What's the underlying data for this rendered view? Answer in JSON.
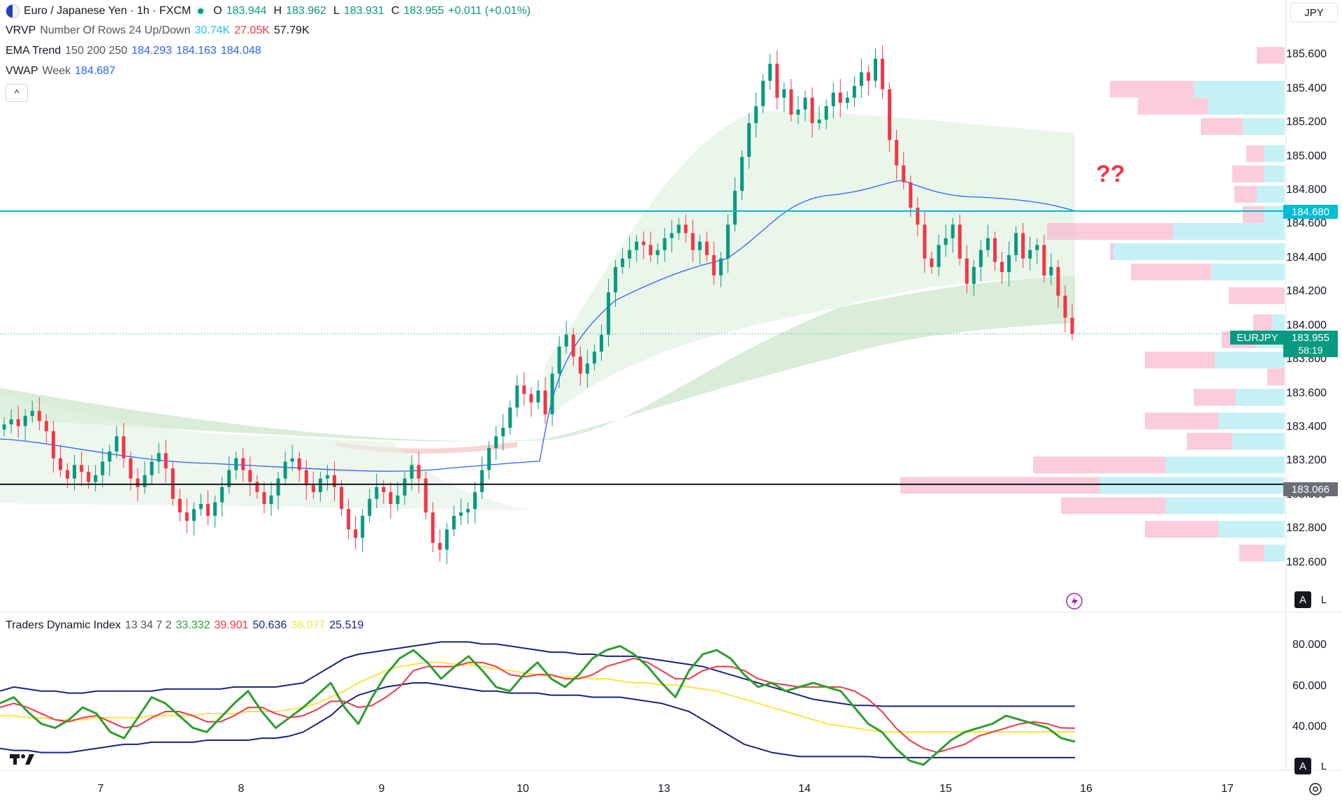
{
  "header": {
    "title": "Euro / Japanese Yen · 1h · FXCM",
    "ohlc": [
      {
        "k": "O",
        "v": "183.944"
      },
      {
        "k": "H",
        "v": "183.962"
      },
      {
        "k": "L",
        "v": "183.931"
      },
      {
        "k": "C",
        "v": "183.955"
      }
    ],
    "change": "+0.011 (+0.01%)"
  },
  "currency": "JPY",
  "indicators": {
    "vrvp": {
      "name": "VRVP",
      "params": "Number Of Rows 24 Up/Down",
      "v1": "30.74K",
      "v2": "27.05K",
      "v3": "57.79K"
    },
    "ema": {
      "name": "EMA Trend",
      "params": "150 200 250",
      "v1": "184.293",
      "v2": "184.163",
      "v3": "184.048"
    },
    "vwap": {
      "name": "VWAP",
      "params": "Week",
      "v1": "184.687"
    },
    "tdi": {
      "name": "Traders Dynamic Index",
      "params": "13 34 7 2",
      "v1": "33.332",
      "v2": "39.901",
      "v3": "50.636",
      "v4": "38.077",
      "v5": "25.519"
    }
  },
  "annotation": "??",
  "price_axis": {
    "ticks": [
      "185.600",
      "185.400",
      "185.200",
      "185.000",
      "184.800",
      "184.600",
      "184.400",
      "184.200",
      "184.000",
      "183.800",
      "183.600",
      "183.400",
      "183.200",
      "183.000",
      "182.800",
      "182.600"
    ],
    "tag_resistance": "184.680",
    "tag_support": "183.066",
    "tag_symbol": "EURJPY",
    "tag_last": "183.955",
    "tag_countdown": "58:19"
  },
  "tdi_axis": {
    "ticks": [
      "80.000",
      "60.000",
      "40.000"
    ]
  },
  "time_axis": {
    "ticks": [
      "7",
      "8",
      "9",
      "10",
      "13",
      "14",
      "15",
      "16",
      "17"
    ]
  },
  "buttons": {
    "auto": "A",
    "log": "L",
    "collapse": "^"
  },
  "colors": {
    "up": "#089981",
    "down": "#f23645",
    "resistance": "#00bcd4",
    "support": "#131722",
    "vwap": "#2962ff",
    "annotation": "#f23645"
  },
  "chart_data": {
    "type": "candlestick",
    "ylim": [
      182.5,
      185.7
    ],
    "levels": [
      {
        "value": 184.68,
        "label": "184.680"
      },
      {
        "value": 183.066,
        "label": "183.066"
      }
    ],
    "last_price": 183.955,
    "closes": [
      183.42,
      183.45,
      183.41,
      183.47,
      183.5,
      183.44,
      183.38,
      183.22,
      183.15,
      183.1,
      183.18,
      183.14,
      183.08,
      183.12,
      183.2,
      183.26,
      183.35,
      183.22,
      183.1,
      183.05,
      183.12,
      183.2,
      183.25,
      183.16,
      182.98,
      182.9,
      182.85,
      182.92,
      182.95,
      182.88,
      182.96,
      183.05,
      183.15,
      183.22,
      183.15,
      183.08,
      183.02,
      182.95,
      183.0,
      183.1,
      183.2,
      183.22,
      183.15,
      183.06,
      183.02,
      183.1,
      183.12,
      183.05,
      182.92,
      182.8,
      182.75,
      182.88,
      182.98,
      183.05,
      183.02,
      182.95,
      183.0,
      183.1,
      183.18,
      183.1,
      182.9,
      182.72,
      182.68,
      182.8,
      182.88,
      182.9,
      182.92,
      183.02,
      183.15,
      183.28,
      183.35,
      183.4,
      183.52,
      183.65,
      183.6,
      183.55,
      183.62,
      183.48,
      183.72,
      183.88,
      183.95,
      183.82,
      183.72,
      183.78,
      183.85,
      183.95,
      184.2,
      184.35,
      184.4,
      184.45,
      184.5,
      184.48,
      184.42,
      184.45,
      184.52,
      184.55,
      184.6,
      184.55,
      184.45,
      184.5,
      184.42,
      184.3,
      184.4,
      184.6,
      184.8,
      185.0,
      185.2,
      185.3,
      185.45,
      185.55,
      185.35,
      185.4,
      185.25,
      185.28,
      185.35,
      185.2,
      185.22,
      185.3,
      185.38,
      185.32,
      185.35,
      185.42,
      185.5,
      185.45,
      185.58,
      185.4,
      185.1,
      184.95,
      184.85,
      184.7,
      184.6,
      184.4,
      184.35,
      184.48,
      184.52,
      184.6,
      184.4,
      184.25,
      184.35,
      184.45,
      184.52,
      184.38,
      184.32,
      184.42,
      184.55,
      184.4,
      184.45,
      184.48,
      184.3,
      184.35,
      184.18,
      184.05,
      183.955
    ],
    "tdi": {
      "ylim": [
        20,
        90
      ],
      "rsi_price": [
        52,
        55,
        48,
        42,
        40,
        44,
        50,
        47,
        38,
        35,
        45,
        55,
        52,
        46,
        40,
        38,
        45,
        52,
        58,
        48,
        40,
        45,
        50,
        56,
        62,
        50,
        42,
        55,
        66,
        74,
        78,
        72,
        64,
        70,
        75,
        68,
        60,
        58,
        66,
        72,
        64,
        60,
        66,
        74,
        78,
        80,
        76,
        70,
        62,
        55,
        68,
        76,
        78,
        74,
        66,
        60,
        62,
        58,
        60,
        62,
        60,
        58,
        50,
        42,
        38,
        30,
        24,
        22,
        28,
        34,
        38,
        40,
        42,
        46,
        44,
        42,
        40,
        35,
        33.3
      ],
      "rsi_signal": [
        50,
        52,
        50,
        47,
        44,
        43,
        45,
        46,
        43,
        40,
        41,
        45,
        48,
        48,
        46,
        43,
        43,
        46,
        50,
        50,
        47,
        45,
        46,
        49,
        53,
        53,
        50,
        51,
        55,
        60,
        68,
        70,
        70,
        70,
        72,
        72,
        70,
        66,
        65,
        66,
        66,
        64,
        64,
        66,
        70,
        72,
        74,
        72,
        68,
        64,
        64,
        68,
        70,
        70,
        68,
        64,
        62,
        61,
        60,
        60,
        60,
        60,
        58,
        54,
        48,
        40,
        34,
        30,
        28,
        30,
        32,
        36,
        38,
        40,
        42,
        43,
        42,
        40,
        39.9
      ],
      "market_base": [
        46,
        46,
        45,
        45,
        44,
        44,
        44,
        45,
        45,
        45,
        45,
        46,
        46,
        46,
        46,
        47,
        47,
        47,
        48,
        48,
        48,
        49,
        50,
        52,
        55,
        58,
        62,
        65,
        68,
        70,
        71,
        72,
        72,
        71,
        71,
        70,
        69,
        68,
        67,
        66,
        65,
        65,
        65,
        64,
        64,
        63,
        62,
        62,
        61,
        61,
        60,
        59,
        58,
        56,
        54,
        52,
        50,
        48,
        46,
        44,
        42,
        41,
        40,
        39,
        38.1,
        38.1,
        38.1,
        38.1,
        38.1,
        38.1,
        38.1,
        38.1,
        38.1,
        38.1,
        38.1,
        38.1,
        38.1,
        38.1,
        38.1
      ],
      "upper_band": [
        58,
        60,
        59,
        58,
        58,
        57,
        57,
        58,
        58,
        58,
        58,
        58,
        59,
        59,
        59,
        59,
        59,
        60,
        60,
        60,
        60,
        61,
        62,
        66,
        70,
        74,
        76,
        77,
        78,
        79,
        80,
        81,
        82,
        82,
        82,
        81,
        81,
        80,
        79,
        78,
        77,
        77,
        76,
        76,
        75,
        75,
        75,
        74,
        73,
        72,
        71,
        70,
        68,
        66,
        64,
        62,
        60,
        58,
        56,
        54,
        53,
        52,
        51,
        51,
        50.6,
        50.6,
        50.6,
        50.6,
        50.6,
        50.6,
        50.6,
        50.6,
        50.6,
        50.6,
        50.6,
        50.6,
        50.6,
        50.6,
        50.6
      ],
      "lower_band": [
        30,
        29,
        29,
        28,
        28,
        28,
        29,
        30,
        31,
        32,
        32,
        33,
        33,
        33,
        33,
        34,
        34,
        34,
        34,
        35,
        35,
        36,
        38,
        42,
        46,
        52,
        56,
        58,
        60,
        61,
        62,
        62,
        61,
        60,
        59,
        58,
        58,
        57,
        57,
        57,
        56,
        56,
        56,
        55,
        55,
        55,
        54,
        53,
        52,
        50,
        48,
        44,
        40,
        36,
        32,
        30,
        28,
        27,
        26,
        26,
        26,
        26,
        26,
        26,
        25.5,
        25.5,
        25.5,
        25.5,
        25.5,
        25.5,
        25.5,
        25.5,
        25.5,
        25.5,
        25.5,
        25.5,
        25.5,
        25.5,
        25.5
      ]
    }
  }
}
